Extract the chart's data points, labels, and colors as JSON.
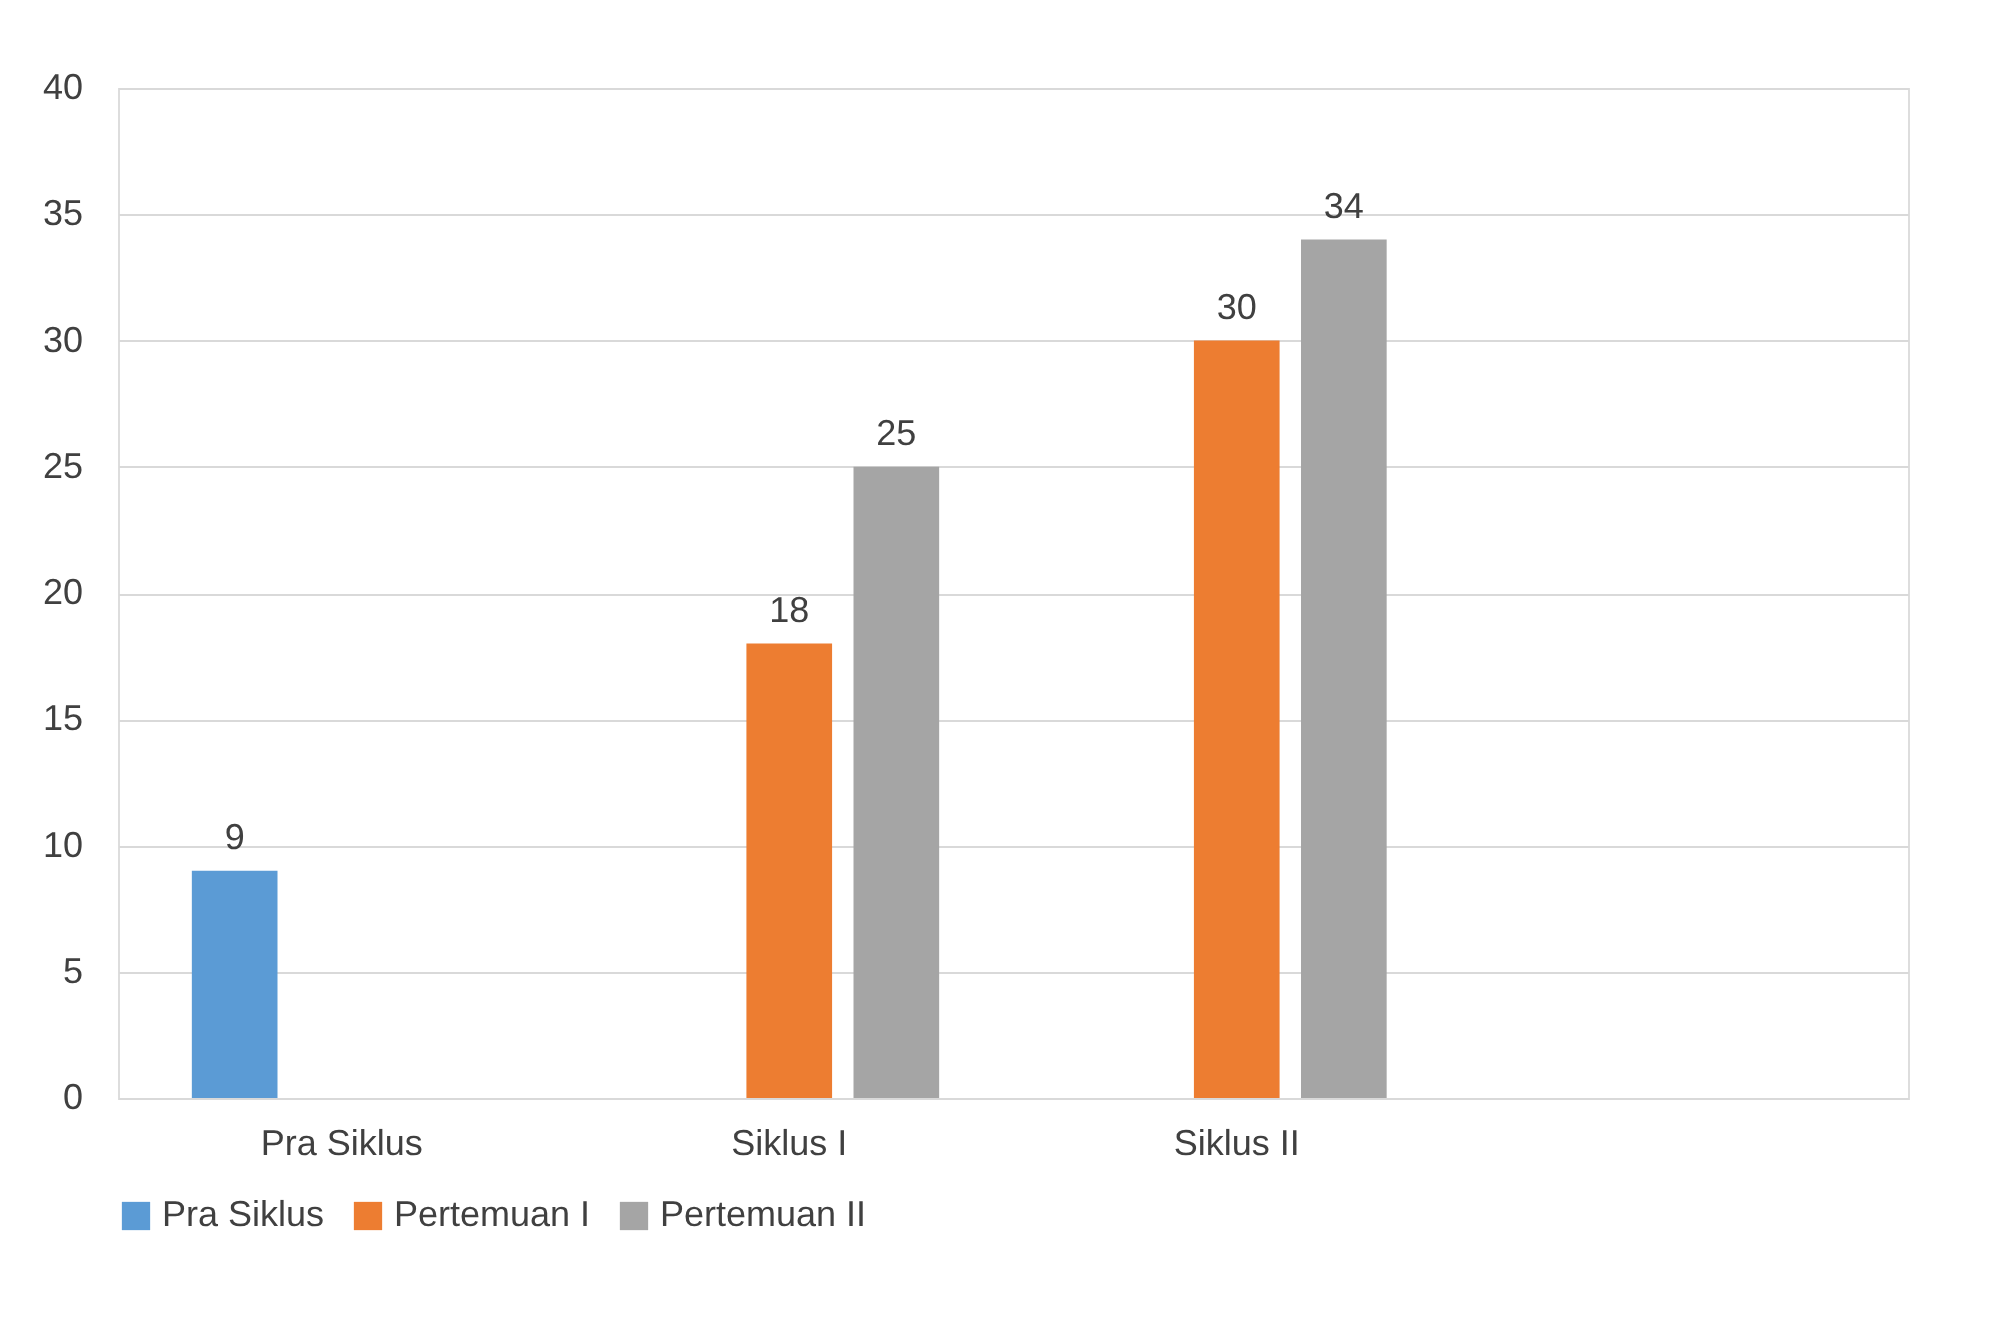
{
  "chart_data": {
    "type": "bar",
    "categories": [
      "Pra Siklus",
      "Siklus I",
      "Siklus II",
      null
    ],
    "series": [
      {
        "name": "Pra Siklus",
        "color": "#5b9bd5",
        "values": [
          9,
          null,
          null,
          null
        ]
      },
      {
        "name": "Pertemuan I",
        "color": "#ed7d31",
        "values": [
          null,
          18,
          30,
          null
        ]
      },
      {
        "name": "Pertemuan II",
        "color": "#a5a5a5",
        "values": [
          null,
          25,
          34,
          null
        ]
      }
    ],
    "ylim": [
      0,
      40
    ],
    "yticks": [
      0,
      5,
      10,
      15,
      20,
      25,
      30,
      35,
      40
    ],
    "grid": "y",
    "legend": "bottom",
    "data_labels": true
  }
}
